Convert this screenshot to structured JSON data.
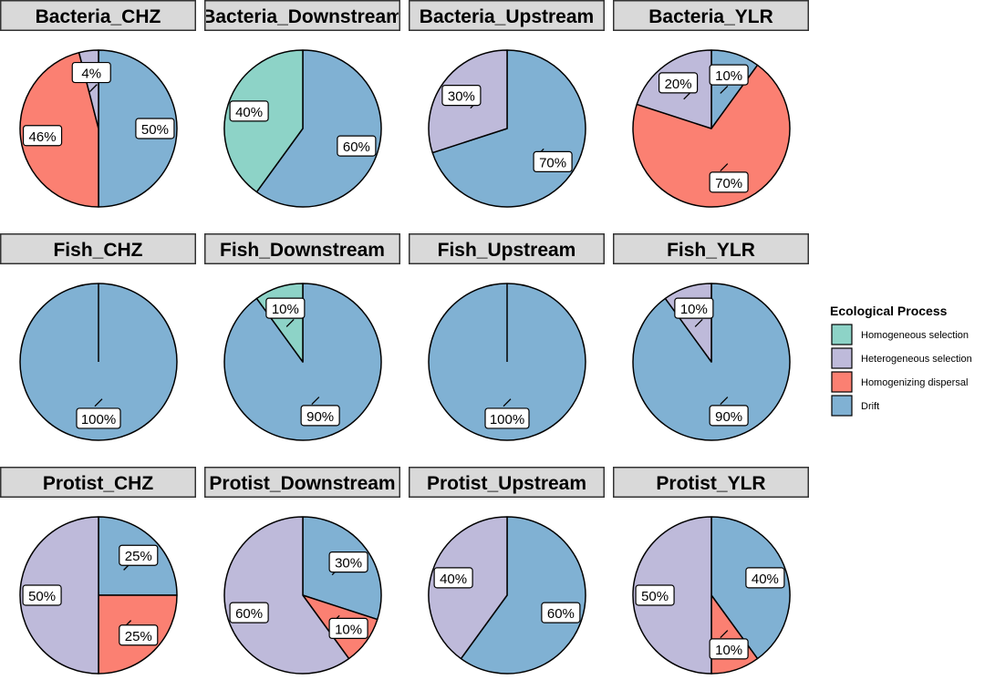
{
  "chart_data": {
    "type": "pie",
    "layout": "facet_wrap 3 rows x 4 columns",
    "legend": {
      "title": "Ecological Process",
      "placement": "right",
      "entries": [
        {
          "name": "Homogeneous selection",
          "color": "#8DD3C7"
        },
        {
          "name": "Heterogeneous selection",
          "color": "#BEBADA"
        },
        {
          "name": "Homogenizing dispersal",
          "color": "#FB8072"
        },
        {
          "name": "Drift",
          "color": "#80B1D3"
        }
      ]
    },
    "panels": [
      {
        "title": "Bacteria_CHZ",
        "slices": [
          {
            "process": "Drift",
            "value": 50,
            "label": "50%"
          },
          {
            "process": "Homogenizing dispersal",
            "value": 46,
            "label": "46%"
          },
          {
            "process": "Heterogeneous selection",
            "value": 4,
            "label": "4%"
          }
        ]
      },
      {
        "title": "Bacteria_Downstream",
        "slices": [
          {
            "process": "Drift",
            "value": 60,
            "label": "60%"
          },
          {
            "process": "Homogeneous selection",
            "value": 40,
            "label": "40%"
          }
        ]
      },
      {
        "title": "Bacteria_Upstream",
        "slices": [
          {
            "process": "Drift",
            "value": 70,
            "label": "70%"
          },
          {
            "process": "Heterogeneous selection",
            "value": 30,
            "label": "30%"
          }
        ]
      },
      {
        "title": "Bacteria_YLR",
        "slices": [
          {
            "process": "Drift",
            "value": 10,
            "label": "10%"
          },
          {
            "process": "Homogenizing dispersal",
            "value": 70,
            "label": "70%"
          },
          {
            "process": "Heterogeneous selection",
            "value": 20,
            "label": "20%"
          }
        ]
      },
      {
        "title": "Fish_CHZ",
        "slices": [
          {
            "process": "Drift",
            "value": 100,
            "label": "100%"
          }
        ]
      },
      {
        "title": "Fish_Downstream",
        "slices": [
          {
            "process": "Drift",
            "value": 90,
            "label": "90%"
          },
          {
            "process": "Homogeneous selection",
            "value": 10,
            "label": "10%"
          }
        ]
      },
      {
        "title": "Fish_Upstream",
        "slices": [
          {
            "process": "Drift",
            "value": 100,
            "label": "100%"
          }
        ]
      },
      {
        "title": "Fish_YLR",
        "slices": [
          {
            "process": "Drift",
            "value": 90,
            "label": "90%"
          },
          {
            "process": "Heterogeneous selection",
            "value": 10,
            "label": "10%"
          }
        ]
      },
      {
        "title": "Protist_CHZ",
        "slices": [
          {
            "process": "Drift",
            "value": 25,
            "label": "25%"
          },
          {
            "process": "Homogenizing dispersal",
            "value": 25,
            "label": "25%"
          },
          {
            "process": "Heterogeneous selection",
            "value": 50,
            "label": "50%"
          }
        ]
      },
      {
        "title": "Protist_Downstream",
        "slices": [
          {
            "process": "Drift",
            "value": 30,
            "label": "30%"
          },
          {
            "process": "Homogenizing dispersal",
            "value": 10,
            "label": "10%"
          },
          {
            "process": "Heterogeneous selection",
            "value": 60,
            "label": "60%"
          }
        ]
      },
      {
        "title": "Protist_Upstream",
        "slices": [
          {
            "process": "Drift",
            "value": 60,
            "label": "60%"
          },
          {
            "process": "Heterogeneous selection",
            "value": 40,
            "label": "40%"
          }
        ]
      },
      {
        "title": "Protist_YLR",
        "slices": [
          {
            "process": "Drift",
            "value": 40,
            "label": "40%"
          },
          {
            "process": "Homogenizing dispersal",
            "value": 10,
            "label": "10%"
          },
          {
            "process": "Heterogeneous selection",
            "value": 50,
            "label": "50%"
          }
        ]
      }
    ]
  }
}
